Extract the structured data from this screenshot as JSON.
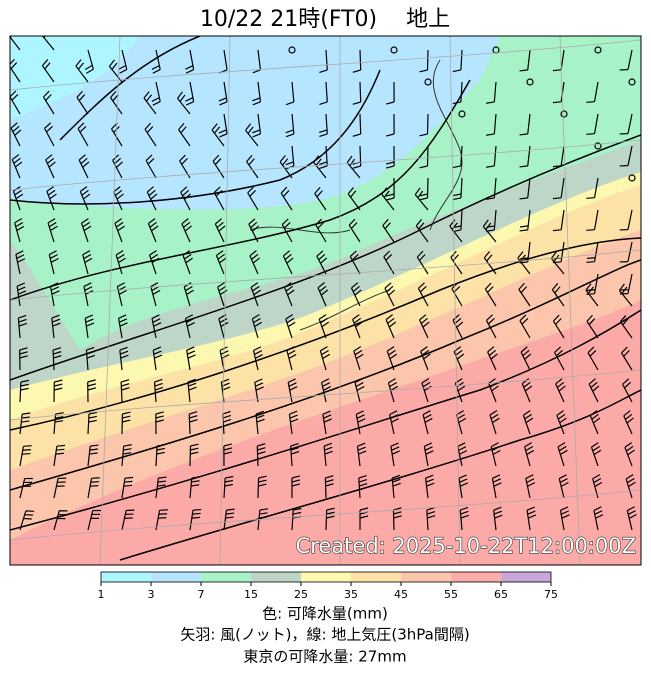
{
  "title": "10/22  21時(FT0)　 地上",
  "created": "Created: 2025-10-22T12:00:00Z",
  "colorbar": {
    "ticks": [
      1,
      3,
      7,
      15,
      25,
      35,
      45,
      55,
      65,
      75
    ],
    "colors": [
      "#aef6ff",
      "#b6e6ff",
      "#a8f2c8",
      "#bed6c8",
      "#fcf8b0",
      "#fde2a8",
      "#fcc6ac",
      "#fcacaa",
      "#c8a8d8"
    ]
  },
  "captions": [
    "色: 可降水量(mm)",
    "矢羽: 風(ノット)，線: 地上気圧(3hPa間隔)",
    "東京の可降水量: 27mm"
  ]
}
